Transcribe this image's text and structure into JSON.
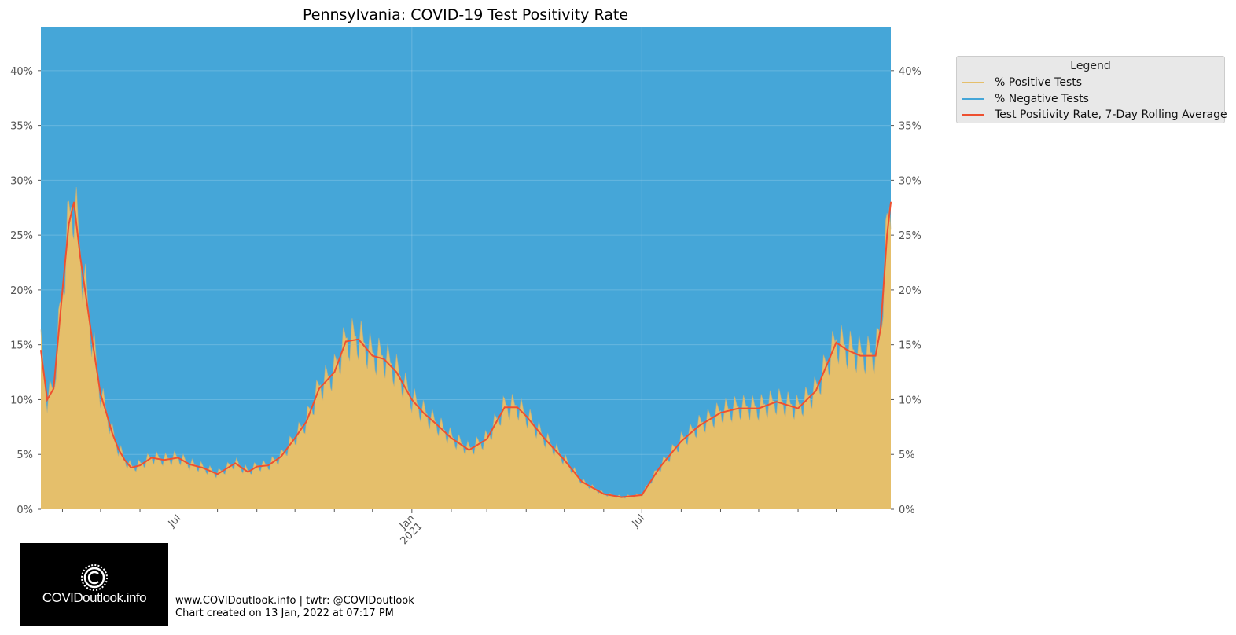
{
  "chart_data": {
    "type": "area",
    "title": "Pennsylvania: COVID-19 Test Positivity Rate",
    "x_tick_labels": [
      {
        "date": "2020-07-01",
        "label": "Jul",
        "sub": ""
      },
      {
        "date": "2021-01-01",
        "label": "Jan",
        "sub": "2021"
      },
      {
        "date": "2021-07-01",
        "label": "Jul",
        "sub": ""
      }
    ],
    "x_minor_ticks": [
      "2020-04-01",
      "2020-05-01",
      "2020-06-01",
      "2020-08-01",
      "2020-09-01",
      "2020-10-01",
      "2020-11-01",
      "2020-12-01",
      "2021-02-01",
      "2021-03-01",
      "2021-04-01",
      "2021-05-01",
      "2021-06-01",
      "2021-08-01",
      "2021-09-01",
      "2021-10-01",
      "2021-11-01",
      "2021-12-01"
    ],
    "xlim": [
      "2020-03-15",
      "2022-01-13"
    ],
    "y_ticks": [
      "0%",
      "5%",
      "10%",
      "15%",
      "20%",
      "25%",
      "30%",
      "35%",
      "40%"
    ],
    "ylim": [
      0,
      44
    ],
    "grid": true,
    "legend_position": "outside-top-right",
    "colors": {
      "positive": "#e5bf6b",
      "negative": "#45a6d8",
      "rolling": "#ee5030"
    },
    "legend": {
      "title": "Legend",
      "entries": [
        "% Positive Tests",
        "% Negative Tests",
        "Test Positivity Rate, 7-Day Rolling Average"
      ]
    },
    "series": [
      {
        "name": "Test Positivity Rate, 7-Day Rolling Average",
        "x": [
          "2020-03-15",
          "2020-03-20",
          "2020-03-25",
          "2020-04-01",
          "2020-04-06",
          "2020-04-10",
          "2020-04-15",
          "2020-04-20",
          "2020-04-25",
          "2020-05-01",
          "2020-05-05",
          "2020-05-10",
          "2020-05-15",
          "2020-05-20",
          "2020-05-25",
          "2020-06-01",
          "2020-06-10",
          "2020-06-20",
          "2020-07-01",
          "2020-07-10",
          "2020-07-20",
          "2020-08-01",
          "2020-08-15",
          "2020-08-25",
          "2020-09-01",
          "2020-09-10",
          "2020-09-20",
          "2020-10-01",
          "2020-10-10",
          "2020-10-20",
          "2020-11-01",
          "2020-11-10",
          "2020-11-20",
          "2020-12-01",
          "2020-12-10",
          "2020-12-20",
          "2021-01-01",
          "2021-01-10",
          "2021-01-20",
          "2021-02-01",
          "2021-02-15",
          "2021-03-01",
          "2021-03-15",
          "2021-03-25",
          "2021-04-01",
          "2021-04-15",
          "2021-05-01",
          "2021-05-15",
          "2021-06-01",
          "2021-06-15",
          "2021-07-01",
          "2021-07-15",
          "2021-08-01",
          "2021-08-15",
          "2021-09-01",
          "2021-09-15",
          "2021-10-01",
          "2021-10-15",
          "2021-11-01",
          "2021-11-15",
          "2021-12-01",
          "2021-12-10",
          "2021-12-20",
          "2022-01-01",
          "2022-01-05",
          "2022-01-10",
          "2022-01-13"
        ],
        "values": [
          14.5,
          10,
          11,
          20,
          26,
          28,
          23,
          19,
          15,
          10.5,
          9,
          7,
          5.5,
          4.5,
          3.8,
          4.0,
          4.7,
          4.5,
          4.7,
          4.1,
          3.8,
          3.2,
          4.2,
          3.4,
          3.9,
          4.0,
          4.8,
          6.5,
          8,
          11,
          12.5,
          15.3,
          15.5,
          14,
          13.7,
          12.5,
          10,
          8.8,
          7.8,
          6.5,
          5.4,
          6.4,
          9.3,
          9.3,
          8.5,
          6.5,
          4.5,
          2.5,
          1.4,
          1.1,
          1.3,
          3.8,
          6.2,
          7.6,
          8.8,
          9.2,
          9.2,
          9.8,
          9.2,
          10.8,
          15.2,
          14.5,
          14.0,
          14.0,
          16.5,
          25,
          28
        ]
      }
    ]
  },
  "footer": {
    "line1": "www.COVIDoutlook.info | twtr: @COVIDoutlook",
    "line2": "Chart created on 13 Jan, 2022 at 07:17 PM"
  },
  "logo": {
    "text": "COVIDoutlook.info",
    "icon": "virus-c-icon"
  }
}
